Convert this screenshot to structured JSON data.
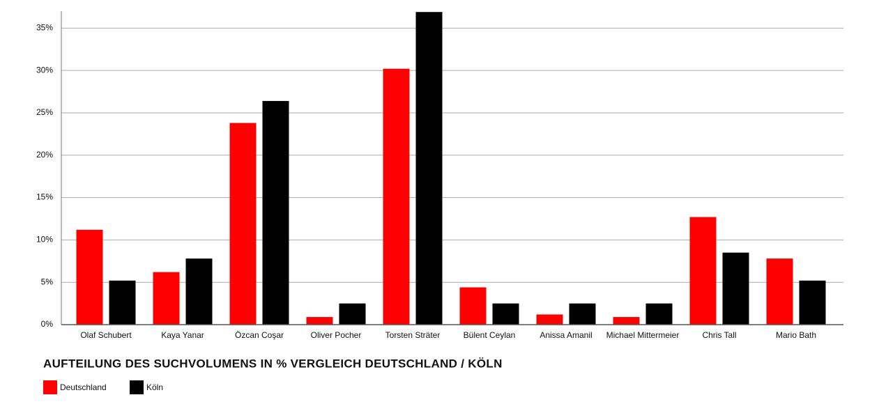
{
  "chart_data": {
    "type": "bar",
    "title": "AUFTEILUNG DES SUCHVOLUMENS IN % VERGLEICH DEUTSCHLAND / KÖLN",
    "categories": [
      "Olaf Schubert",
      "Kaya Yanar",
      "Özcan Coşar",
      "Oliver Pocher",
      "Torsten Sträter",
      "Bülent Ceylan",
      "Anissa Amanil",
      "Michael Mittermeier",
      "Chris Tall",
      "Mario Bath"
    ],
    "series": [
      {
        "name": "Deutschland",
        "color": "#ff0000",
        "values": [
          11.2,
          6.2,
          23.8,
          0.9,
          30.2,
          4.4,
          1.2,
          0.9,
          12.7,
          7.8
        ]
      },
      {
        "name": "Köln",
        "color": "#000000",
        "values": [
          5.2,
          7.8,
          26.4,
          2.5,
          36.9,
          2.5,
          2.5,
          2.5,
          8.5,
          5.2
        ]
      }
    ],
    "ylim": [
      0,
      37
    ],
    "yticks": [
      {
        "value": 0,
        "label": "0%"
      },
      {
        "value": 5,
        "label": "5%"
      },
      {
        "value": 10,
        "label": "10%"
      },
      {
        "value": 15,
        "label": "15%"
      },
      {
        "value": 20,
        "label": "20%"
      },
      {
        "value": 25,
        "label": "25%"
      },
      {
        "value": 30,
        "label": "30%"
      },
      {
        "value": 35,
        "label": "35%"
      }
    ],
    "grid": true,
    "legend": "bottom-left"
  }
}
